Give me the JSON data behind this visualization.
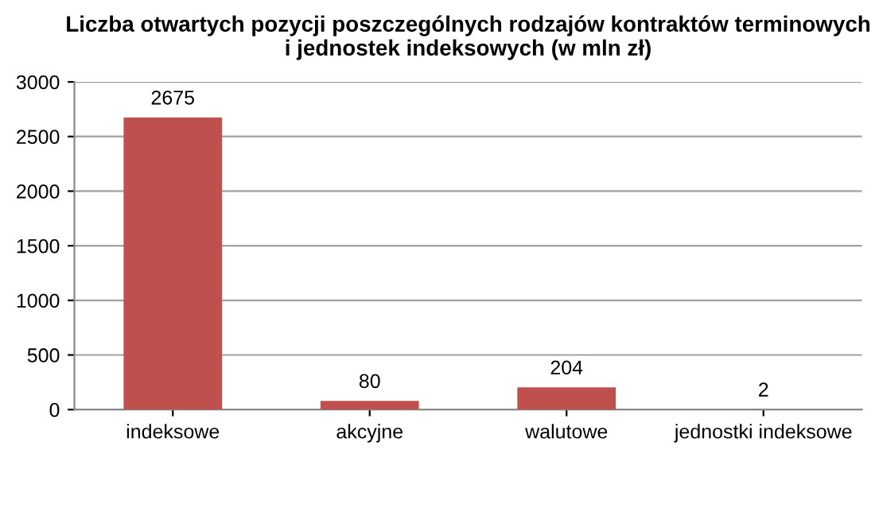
{
  "chart_data": {
    "type": "bar",
    "title": "Liczba otwartych pozycji poszczególnych rodzajów kontraktów terminowych\ni jednostek indeksowych (w mln zł)",
    "categories": [
      "indeksowe",
      "akcyjne",
      "walutowe",
      "jednostki indeksowe"
    ],
    "values": [
      2675,
      80,
      204,
      2
    ],
    "color": "#c0504d",
    "ylim": [
      0,
      3000
    ],
    "yticks": [
      0,
      500,
      1000,
      1500,
      2000,
      2500,
      3000
    ],
    "grid": "y",
    "data_labels": true,
    "legend": false
  }
}
